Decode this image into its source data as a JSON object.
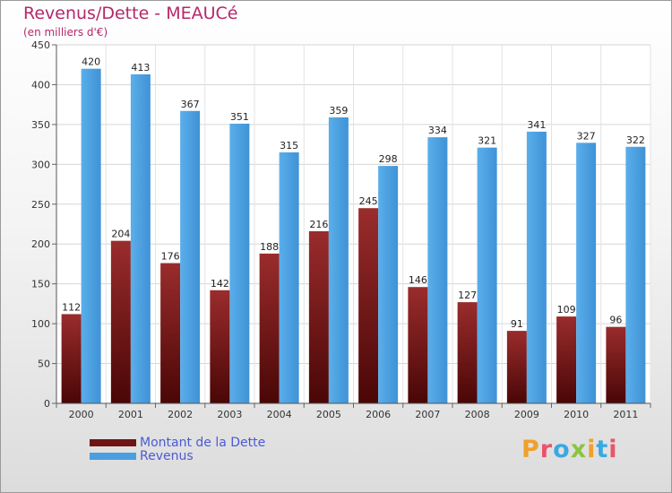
{
  "title": "Revenus/Dette - MEAUCé",
  "subtitle": "(en milliers d'€)",
  "logo": {
    "text": "Proxiti",
    "colors": [
      "#f0a12a",
      "#e8546a",
      "#3aa9e0",
      "#8bc53f",
      "#f0a12a",
      "#3aa9e0",
      "#e8546a"
    ]
  },
  "colors": {
    "dette": "#6e1414",
    "revenus": "#4a9fe0",
    "title": "#b5276a",
    "legend_text": "#4a5ad4"
  },
  "chart_data": {
    "type": "bar",
    "categories": [
      "2000",
      "2001",
      "2002",
      "2003",
      "2004",
      "2005",
      "2006",
      "2007",
      "2008",
      "2009",
      "2010",
      "2011"
    ],
    "series": [
      {
        "name": "Montant de la Dette",
        "values": [
          112,
          204,
          176,
          142,
          188,
          216,
          245,
          146,
          127,
          91,
          109,
          96
        ]
      },
      {
        "name": "Revenus",
        "values": [
          420,
          413,
          367,
          351,
          315,
          359,
          298,
          334,
          321,
          341,
          327,
          322
        ]
      }
    ],
    "yticks": [
      0,
      50,
      100,
      150,
      200,
      250,
      300,
      350,
      400,
      450
    ],
    "ylim": [
      0,
      450
    ],
    "grid": true,
    "legend": "bottom-left"
  }
}
